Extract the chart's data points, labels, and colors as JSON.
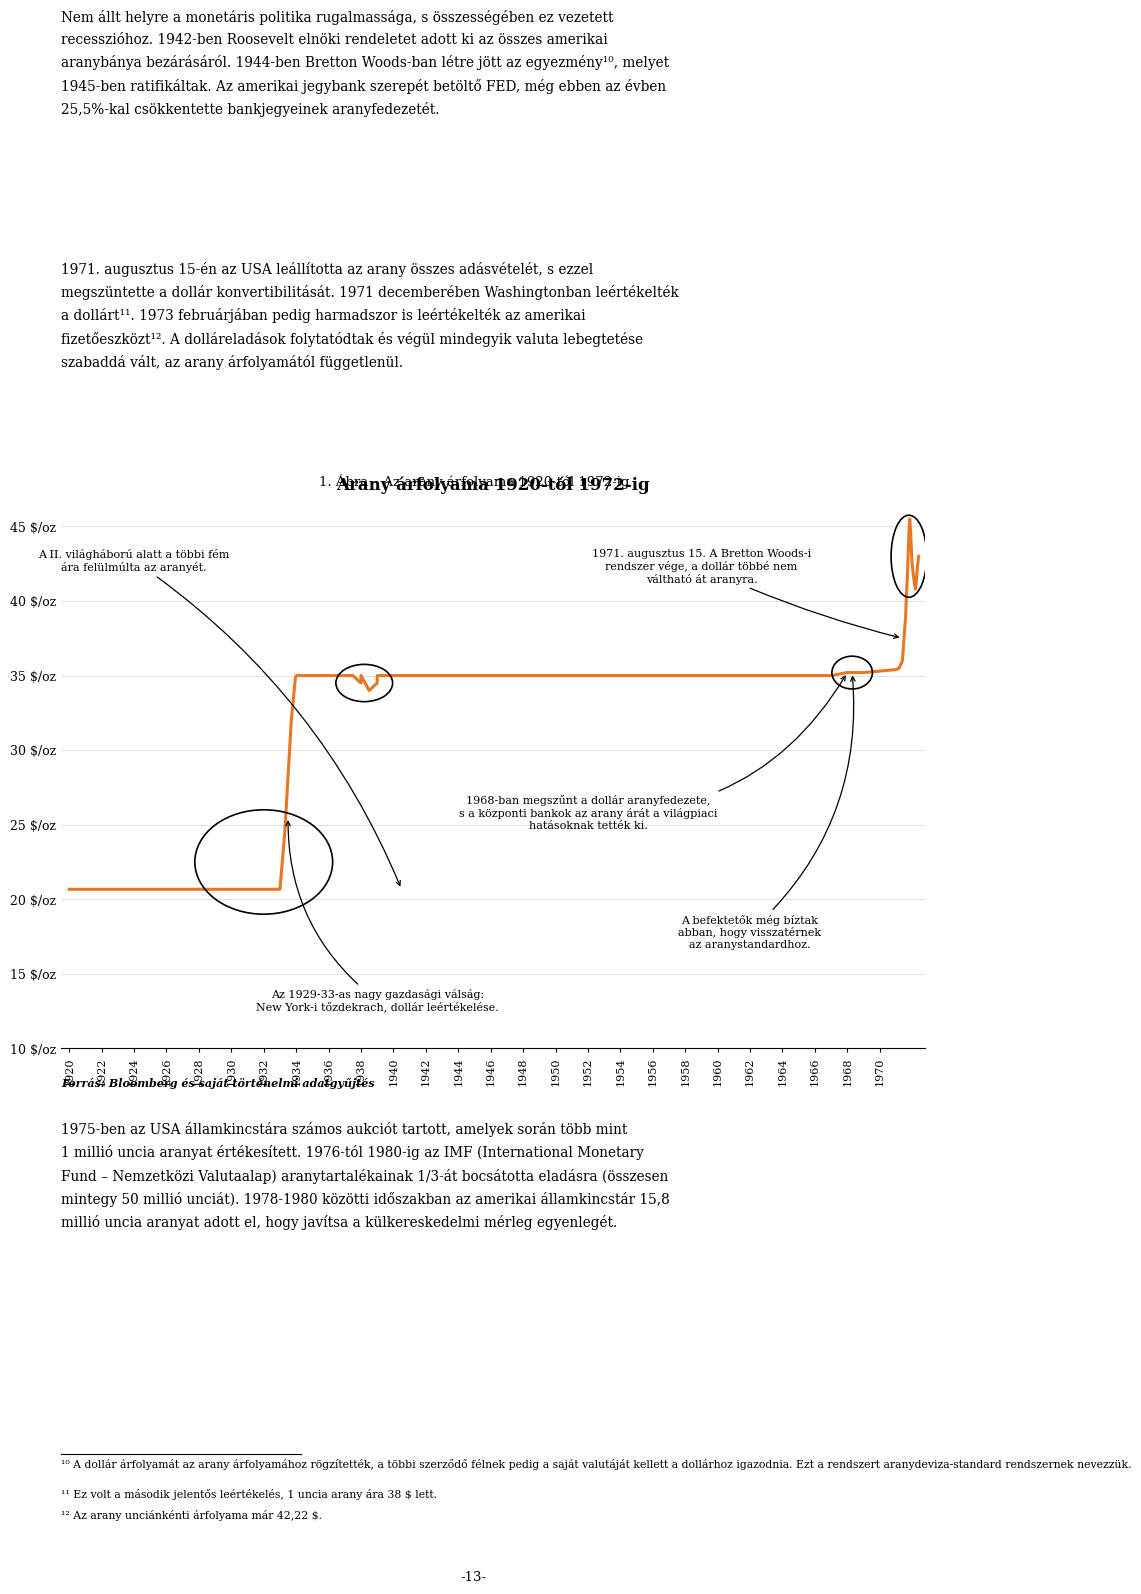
{
  "title_above": "1. Ábra – Az arany árfolyama 1920-tól 1972-ig",
  "title": "Arany árfolyama 1920-tól 1972-ig",
  "ylim": [
    10,
    47
  ],
  "yticks": [
    10,
    15,
    20,
    25,
    30,
    35,
    40,
    45
  ],
  "ytick_labels": [
    "10 $/oz",
    "15 $/oz",
    "20 $/oz",
    "25 $/oz",
    "30 $/oz",
    "35 $/oz",
    "40 $/oz",
    "45 $/oz"
  ],
  "line_color": "#E87722",
  "line_width": 2.2,
  "annotation1_text": "A II. világháború alatt a többi fém\nára felülmúlta az aranyét.",
  "annotation2_text": "1971. augusztus 15. A Bretton Woods-i\nrendszer vége, a dollár többé nem\nváltható át aranyra.",
  "annotation3_text": "1968-ban megszűnt a dollár aranyfedezete,\ns a központi bankok az arany árát a világpiaci\nhatásoknak tették ki.",
  "annotation4_text": "Az 1929-33-as nagy gazdasági válság:\nNew York-i tőzdekrach, dollár leértékelése.",
  "annotation5_text": "A befektetők még bíztak\nabban, hogy visszatérnek\naz aranystandardhoz.",
  "source_text": "Forrás: Bloomberg és saját történelmi adatgyűjtés",
  "background_color": "#ffffff",
  "chart_bg": "#ffffff",
  "para1_line1": "Nem állt helyre a monetáris politika rugalmassága, s összességében ez vezetett recesszióhoz. 1942-ben Roosevelt elnöki rendeletet adott ki az összes amerikai",
  "para1_line2": "aranybánya bezárásáról. 1944-ben Bretton Woods-ban létre jött az egyezmény¹⁰, melyet 1945-ben ratifikáltak. Az amerikai jegybank szerepét betöltő FED, még ebben az évben",
  "para1_line3": "25,5%-kal csökkentette bankjegyeinek aranyfedezeit.",
  "para2_line1": "1971. augusztus 15-én az USA leállította az arany összes adásvételét, s ezzel megszüntette a dollár konvertibilitását. 1971 decembérében Washingtonban leértékelték",
  "para2_line2": "a dollárt¹¹. 1973 februárjában pedig harmadszor is leértékelték az amerikai fizetőeszközt¹². A dolláreladások folytatódtak és végül mindegyik valuta lebegtetése",
  "para2_line3": "szabaddá vált, az arany árfolyamától függetlenül.",
  "bottom_para": "1975-ben az USA államkincstára számos aukciót tartott, amelyek során több mint 1 millió uncia aranyat értékesített. 1976-tól 1980-ig az IMF (International Monetary\nFund – Nemzetközi Valutaalap) aranytartalékainak 1/3-át bocsátotta eladásra (összesen mintegy 50 millió unciát). 1978-1980 közötti időszakban az amerikai államkincstár 15,8\nmillió uncia aranyat adott el, hogy javítsa a külkereskedelmi mérleg egyenlegét.",
  "footnote1": "¹⁰ A dollár árfolyamát az arany árfolyamához rögzítették, a többi szerződő félnek pedig a saját valutáját kellett a dollárhoz igazodnia. Ezt a rendszert aranydeviza-standard rendszernek nevezzük.",
  "footnote2": "¹¹ Ez volt a második jelentős leértékelés, 1 uncia arany ára 38 $ lett.",
  "footnote3": "¹² Az arany unciánkénti árfolyama már 42,22 $.",
  "page_number": "-13-"
}
